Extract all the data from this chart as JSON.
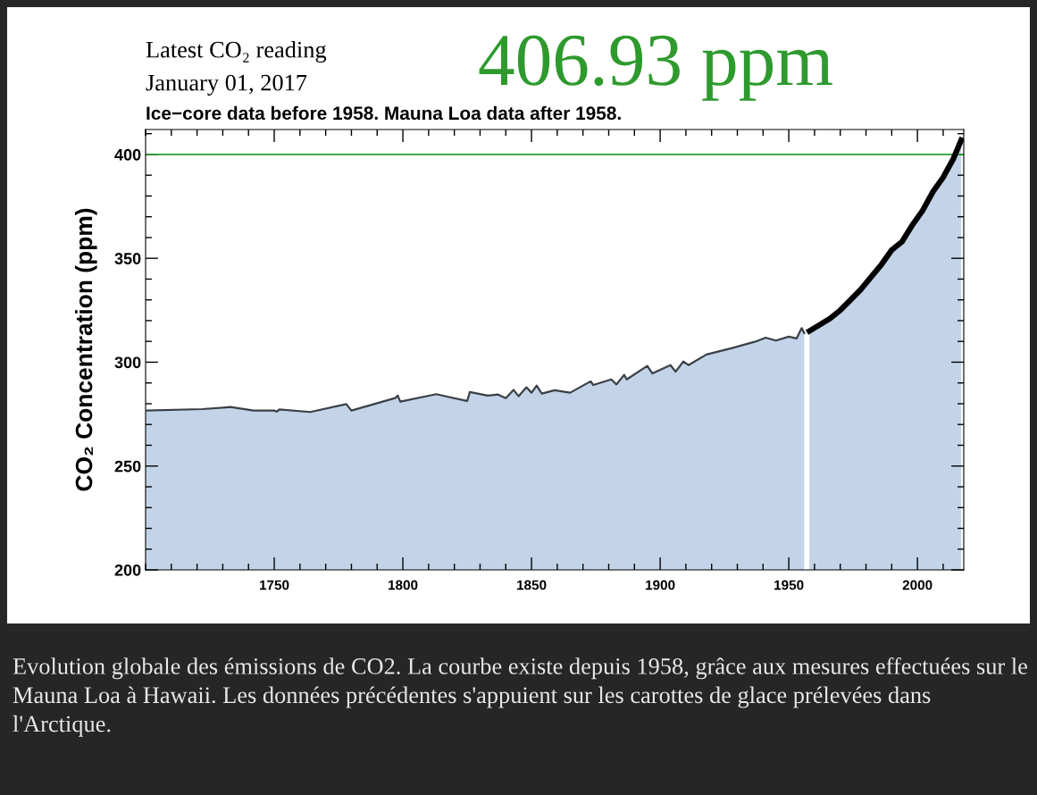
{
  "chart_data": {
    "type": "area",
    "title": "Ice−core data before 1958. Mauna Loa data after 1958.",
    "ylabel": "CO₂ Concentration (ppm)",
    "annotations": [
      "Latest CO₂ reading",
      "January 01, 2017",
      "406.93 ppm",
      "Evolution globale des émissions de CO2. La courbe existe depuis 1958, grâce aux mesures effectuées sur le Mauna Loa à Hawaii. Les données précédentes s'appuient sur les carottes de glace prélevées dans l'Arctique."
    ],
    "xlim": [
      1700,
      2018
    ],
    "xticks": [
      1750,
      1800,
      1850,
      1900,
      1950,
      2000
    ],
    "ylim": [
      200,
      412
    ],
    "yticks": [
      200,
      250,
      300,
      350,
      400
    ],
    "ref_lines": [
      {
        "axis": "y",
        "value": 400,
        "color": "#2e9a2e"
      }
    ],
    "grid": false,
    "legend": false,
    "series": [
      {
        "color": "#c3d4e9",
        "x": [
          1700,
          1722,
          1733,
          1742,
          1750,
          1751,
          1752,
          1764,
          1778,
          1780,
          1797,
          1798,
          1799,
          1813,
          1825,
          1826,
          1833,
          1837,
          1840,
          1843,
          1845,
          1848,
          1850,
          1852,
          1854,
          1859,
          1865,
          1873,
          1874,
          1881,
          1883,
          1886,
          1887,
          1895,
          1897,
          1904,
          1906,
          1909,
          1911,
          1918,
          1928,
          1937,
          1941,
          1945,
          1950,
          1953,
          1955,
          1956
        ],
        "values": [
          276.7,
          277.4,
          278.4,
          276.7,
          276.7,
          276.2,
          277.2,
          276,
          279.8,
          276.7,
          282.7,
          283.9,
          281,
          284.6,
          281.3,
          285.6,
          283.9,
          284.4,
          282.7,
          286.7,
          283.6,
          287.9,
          285.3,
          288.7,
          284.9,
          286.5,
          285.3,
          290.8,
          289,
          291.7,
          289.3,
          293.9,
          291.7,
          298.2,
          294.6,
          298.6,
          295.4,
          300.3,
          298.6,
          303.7,
          306.8,
          309.9,
          311.8,
          310.4,
          312.3,
          311.4,
          316.4,
          314
        ]
      },
      {
        "color": "#c3d4e9",
        "x": [
          1958,
          1962,
          1966,
          1970,
          1974,
          1978,
          1982,
          1986,
          1990,
          1994,
          1998,
          2002,
          2006,
          2010,
          2014,
          2017
        ],
        "values": [
          315,
          318,
          321,
          325,
          330,
          335,
          341,
          347,
          354,
          358,
          366,
          373,
          382,
          389,
          398,
          406.9
        ]
      }
    ]
  }
}
